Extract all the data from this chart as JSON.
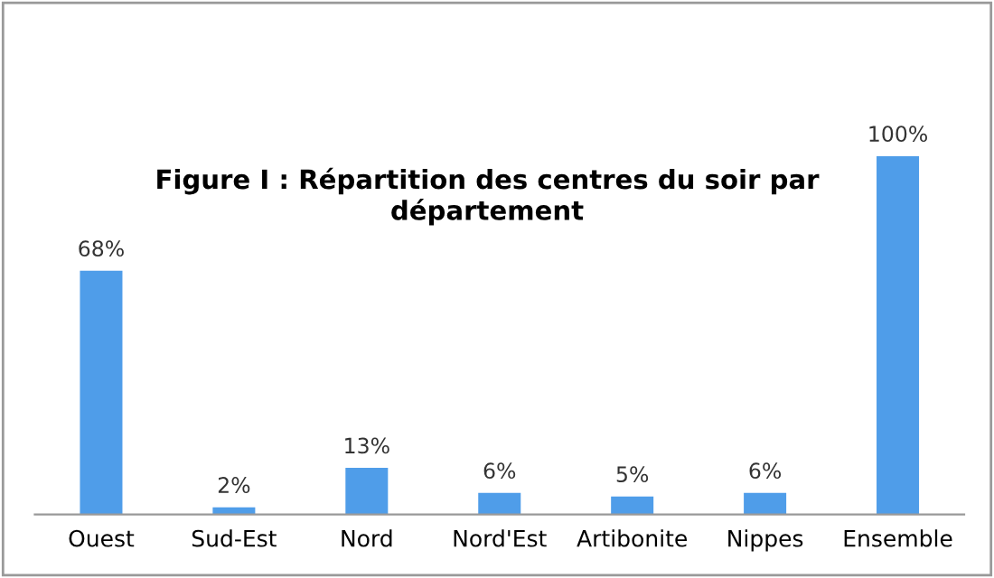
{
  "chart_data": {
    "type": "bar",
    "title": "Figure I : Répartition des centres du soir par département",
    "categories": [
      "Ouest",
      "Sud-Est",
      "Nord",
      "Nord'Est",
      "Artibonite",
      "Nippes",
      "Ensemble"
    ],
    "values": [
      68,
      2,
      13,
      6,
      5,
      6,
      100
    ],
    "value_labels": [
      "68%",
      "2%",
      "13%",
      "6%",
      "5%",
      "6%",
      "100%"
    ],
    "color": "#4f9de9",
    "grid": false,
    "legend": false
  }
}
